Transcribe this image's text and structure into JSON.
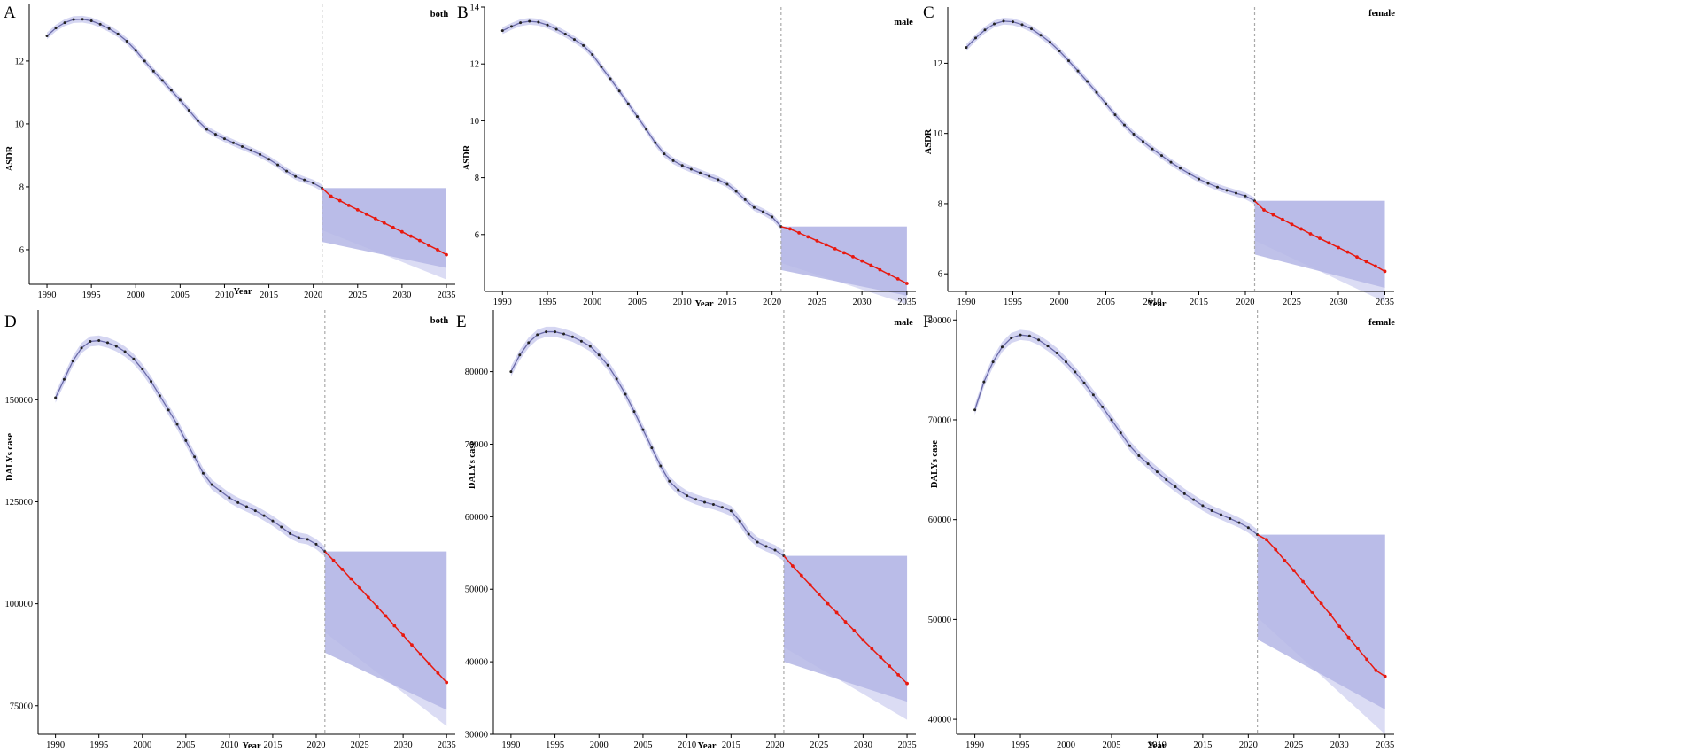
{
  "chart_data": [
    {
      "type": "line",
      "panel_letter": "A",
      "group_label": "both",
      "xlabel": "Year",
      "ylabel": "ASDR",
      "xlim": [
        1988,
        2036
      ],
      "ylim": [
        4.9,
        13.8
      ],
      "xticks": [
        1990,
        1995,
        2000,
        2005,
        2010,
        2015,
        2020,
        2025,
        2030,
        2035
      ],
      "yticks": [
        6,
        8,
        10,
        12
      ],
      "divider_x": 2021,
      "series": [
        {
          "role": "observed",
          "x": [
            1990,
            1991,
            1992,
            1993,
            1994,
            1995,
            1996,
            1997,
            1998,
            1999,
            2000,
            2001,
            2002,
            2003,
            2004,
            2005,
            2006,
            2007,
            2008,
            2009,
            2010,
            2011,
            2012,
            2013,
            2014,
            2015,
            2016,
            2017,
            2018,
            2019,
            2020,
            2021
          ],
          "y": [
            12.8,
            13.05,
            13.22,
            13.32,
            13.33,
            13.28,
            13.17,
            13.03,
            12.86,
            12.63,
            12.34,
            12.0,
            11.68,
            11.38,
            11.07,
            10.76,
            10.43,
            10.1,
            9.83,
            9.67,
            9.53,
            9.4,
            9.28,
            9.16,
            9.03,
            8.88,
            8.7,
            8.5,
            8.33,
            8.22,
            8.12,
            7.96
          ]
        },
        {
          "role": "forecast",
          "x": [
            2022,
            2023,
            2024,
            2025,
            2026,
            2027,
            2028,
            2029,
            2030,
            2031,
            2032,
            2033,
            2034,
            2035
          ],
          "y": [
            7.7,
            7.56,
            7.41,
            7.27,
            7.13,
            6.99,
            6.85,
            6.71,
            6.57,
            6.43,
            6.29,
            6.14,
            6.0,
            5.84
          ]
        }
      ],
      "bands": {
        "x": [
          2021,
          2035
        ],
        "outer": [
          [
            7.96,
            7.96
          ],
          [
            6.62,
            5.05
          ]
        ],
        "inner": [
          [
            7.96,
            7.96
          ],
          [
            6.25,
            5.42
          ]
        ]
      }
    },
    {
      "type": "line",
      "panel_letter": "B",
      "group_label": "male",
      "xlabel": "Year",
      "ylabel": "ASDR",
      "xlim": [
        1988,
        2036
      ],
      "ylim": [
        4.0,
        14.0
      ],
      "xticks": [
        1990,
        1995,
        2000,
        2005,
        2010,
        2015,
        2020,
        2025,
        2030,
        2035
      ],
      "yticks": [
        6,
        8,
        10,
        12,
        14
      ],
      "divider_x": 2021,
      "series": [
        {
          "role": "observed",
          "x": [
            1990,
            1991,
            1992,
            1993,
            1994,
            1995,
            1996,
            1997,
            1998,
            1999,
            2000,
            2001,
            2002,
            2003,
            2004,
            2005,
            2006,
            2007,
            2008,
            2009,
            2010,
            2011,
            2012,
            2013,
            2014,
            2015,
            2016,
            2017,
            2018,
            2019,
            2020,
            2021
          ],
          "y": [
            13.17,
            13.32,
            13.45,
            13.5,
            13.47,
            13.37,
            13.22,
            13.05,
            12.86,
            12.65,
            12.33,
            11.9,
            11.48,
            11.05,
            10.6,
            10.15,
            9.7,
            9.23,
            8.84,
            8.6,
            8.43,
            8.3,
            8.17,
            8.05,
            7.93,
            7.77,
            7.52,
            7.23,
            6.95,
            6.8,
            6.62,
            6.28
          ]
        },
        {
          "role": "forecast",
          "x": [
            2022,
            2023,
            2024,
            2025,
            2026,
            2027,
            2028,
            2029,
            2030,
            2031,
            2032,
            2033,
            2034,
            2035
          ],
          "y": [
            6.2,
            6.06,
            5.92,
            5.78,
            5.64,
            5.5,
            5.36,
            5.22,
            5.07,
            4.92,
            4.76,
            4.6,
            4.44,
            4.28
          ]
        }
      ],
      "bands": {
        "x": [
          2021,
          2035
        ],
        "outer": [
          [
            6.28,
            6.28
          ],
          [
            5.0,
            3.55
          ]
        ],
        "inner": [
          [
            6.28,
            6.28
          ],
          [
            4.75,
            3.85
          ]
        ]
      }
    },
    {
      "type": "line",
      "panel_letter": "C",
      "group_label": "female",
      "xlabel": "Year",
      "ylabel": "ASDR",
      "xlim": [
        1988,
        2036
      ],
      "ylim": [
        5.5,
        13.6
      ],
      "xticks": [
        1990,
        1995,
        2000,
        2005,
        2010,
        2015,
        2020,
        2025,
        2030,
        2035
      ],
      "yticks": [
        6,
        8,
        10,
        12
      ],
      "divider_x": 2021,
      "series": [
        {
          "role": "observed",
          "x": [
            1990,
            1991,
            1992,
            1993,
            1994,
            1995,
            1996,
            1997,
            1998,
            1999,
            2000,
            2001,
            2002,
            2003,
            2004,
            2005,
            2006,
            2007,
            2008,
            2009,
            2010,
            2011,
            2012,
            2013,
            2014,
            2015,
            2016,
            2017,
            2018,
            2019,
            2020,
            2021
          ],
          "y": [
            12.45,
            12.72,
            12.95,
            13.12,
            13.2,
            13.18,
            13.1,
            12.98,
            12.8,
            12.6,
            12.35,
            12.07,
            11.78,
            11.48,
            11.17,
            10.85,
            10.53,
            10.24,
            9.98,
            9.77,
            9.56,
            9.37,
            9.18,
            9.01,
            8.85,
            8.7,
            8.58,
            8.47,
            8.38,
            8.3,
            8.22,
            8.08
          ]
        },
        {
          "role": "forecast",
          "x": [
            2022,
            2023,
            2024,
            2025,
            2026,
            2027,
            2028,
            2029,
            2030,
            2031,
            2032,
            2033,
            2034,
            2035
          ],
          "y": [
            7.82,
            7.68,
            7.55,
            7.41,
            7.28,
            7.14,
            7.01,
            6.88,
            6.75,
            6.62,
            6.48,
            6.35,
            6.22,
            6.07
          ]
        }
      ],
      "bands": {
        "x": [
          2021,
          2035
        ],
        "outer": [
          [
            8.08,
            8.08
          ],
          [
            6.95,
            5.2
          ]
        ],
        "inner": [
          [
            8.08,
            8.08
          ],
          [
            6.55,
            5.6
          ]
        ]
      }
    },
    {
      "type": "line",
      "panel_letter": "D",
      "group_label": "both",
      "xlabel": "Year",
      "ylabel": "DALYs case",
      "xlim": [
        1988,
        2036
      ],
      "ylim": [
        68000,
        172000
      ],
      "xticks": [
        1990,
        1995,
        2000,
        2005,
        2010,
        2015,
        2020,
        2025,
        2030,
        2035
      ],
      "yticks": [
        75000,
        100000,
        125000,
        150000
      ],
      "divider_x": 2021,
      "series": [
        {
          "role": "observed",
          "x": [
            1990,
            1991,
            1992,
            1993,
            1994,
            1995,
            1996,
            1997,
            1998,
            1999,
            2000,
            2001,
            2002,
            2003,
            2004,
            2005,
            2006,
            2007,
            2008,
            2009,
            2010,
            2011,
            2012,
            2013,
            2014,
            2015,
            2016,
            2017,
            2018,
            2019,
            2020,
            2021
          ],
          "y": [
            150500,
            155000,
            159500,
            162700,
            164300,
            164500,
            164000,
            163100,
            161800,
            160000,
            157500,
            154500,
            151000,
            147500,
            144000,
            140000,
            136000,
            132000,
            129200,
            127600,
            126000,
            124800,
            123800,
            122800,
            121600,
            120300,
            118800,
            117200,
            116200,
            115800,
            114600,
            112800
          ]
        },
        {
          "role": "forecast",
          "x": [
            2022,
            2023,
            2024,
            2025,
            2026,
            2027,
            2028,
            2029,
            2030,
            2031,
            2032,
            2033,
            2034,
            2035
          ],
          "y": [
            110600,
            108400,
            106100,
            103900,
            101600,
            99300,
            97000,
            94600,
            92300,
            89900,
            87600,
            85300,
            83000,
            80700
          ]
        }
      ],
      "bands": {
        "x": [
          2021,
          2035
        ],
        "outer": [
          [
            112800,
            112800
          ],
          [
            93000,
            70000
          ]
        ],
        "inner": [
          [
            112800,
            112800
          ],
          [
            88000,
            74000
          ]
        ]
      }
    },
    {
      "type": "line",
      "panel_letter": "E",
      "group_label": "male",
      "xlabel": "Year",
      "ylabel": "DALYs case",
      "xlim": [
        1988,
        2036
      ],
      "ylim": [
        30000,
        88500
      ],
      "xticks": [
        1990,
        1995,
        2000,
        2005,
        2010,
        2015,
        2020,
        2025,
        2030,
        2035
      ],
      "yticks": [
        30000,
        40000,
        50000,
        60000,
        70000,
        80000
      ],
      "divider_x": 2021,
      "series": [
        {
          "role": "observed",
          "x": [
            1990,
            1991,
            1992,
            1993,
            1994,
            1995,
            1996,
            1997,
            1998,
            1999,
            2000,
            2001,
            2002,
            2003,
            2004,
            2005,
            2006,
            2007,
            2008,
            2009,
            2010,
            2011,
            2012,
            2013,
            2014,
            2015,
            2016,
            2017,
            2018,
            2019,
            2020,
            2021
          ],
          "y": [
            80000,
            82300,
            84000,
            85100,
            85500,
            85500,
            85200,
            84800,
            84200,
            83500,
            82300,
            80900,
            79000,
            76900,
            74500,
            72000,
            69500,
            67000,
            64900,
            63700,
            62900,
            62400,
            62000,
            61700,
            61300,
            60800,
            59400,
            57600,
            56500,
            55900,
            55400,
            54600
          ]
        },
        {
          "role": "forecast",
          "x": [
            2022,
            2023,
            2024,
            2025,
            2026,
            2027,
            2028,
            2029,
            2030,
            2031,
            2032,
            2033,
            2034,
            2035
          ],
          "y": [
            53200,
            51900,
            50600,
            49300,
            48000,
            46800,
            45500,
            44300,
            43000,
            41800,
            40600,
            39400,
            38200,
            37000
          ]
        }
      ],
      "bands": {
        "x": [
          2021,
          2035
        ],
        "outer": [
          [
            54600,
            54600
          ],
          [
            42000,
            32000
          ]
        ],
        "inner": [
          [
            54600,
            54600
          ],
          [
            40000,
            34500
          ]
        ]
      }
    },
    {
      "type": "line",
      "panel_letter": "F",
      "group_label": "female",
      "xlabel": "Year",
      "ylabel": "DALYs case",
      "xlim": [
        1988,
        2036
      ],
      "ylim": [
        38500,
        81000
      ],
      "xticks": [
        1990,
        1995,
        2000,
        2005,
        2010,
        2015,
        2020,
        2025,
        2030,
        2035
      ],
      "yticks": [
        40000,
        50000,
        60000,
        70000,
        80000
      ],
      "divider_x": 2021,
      "series": [
        {
          "role": "observed",
          "x": [
            1990,
            1991,
            1992,
            1993,
            1994,
            1995,
            1996,
            1997,
            1998,
            1999,
            2000,
            2001,
            2002,
            2003,
            2004,
            2005,
            2006,
            2007,
            2008,
            2009,
            2010,
            2011,
            2012,
            2013,
            2014,
            2015,
            2016,
            2017,
            2018,
            2019,
            2020,
            2021
          ],
          "y": [
            71000,
            73800,
            75800,
            77300,
            78200,
            78500,
            78400,
            78000,
            77400,
            76700,
            75800,
            74800,
            73700,
            72500,
            71300,
            70000,
            68700,
            67400,
            66400,
            65600,
            64800,
            64000,
            63300,
            62600,
            62000,
            61400,
            60900,
            60500,
            60100,
            59700,
            59200,
            58500
          ]
        },
        {
          "role": "forecast",
          "x": [
            2022,
            2023,
            2024,
            2025,
            2026,
            2027,
            2028,
            2029,
            2030,
            2031,
            2032,
            2033,
            2034,
            2035
          ],
          "y": [
            58000,
            57000,
            55900,
            54900,
            53800,
            52700,
            51600,
            50500,
            49300,
            48200,
            47100,
            46000,
            44900,
            44300
          ]
        }
      ],
      "bands": {
        "x": [
          2021,
          2035
        ],
        "outer": [
          [
            58500,
            58500
          ],
          [
            50200,
            38500
          ]
        ],
        "inner": [
          [
            58500,
            58500
          ],
          [
            48000,
            41000
          ]
        ]
      }
    }
  ],
  "colors": {
    "observed_line": "#6a6aa8",
    "observed_point": "#222222",
    "forecast_line": "#e8190f",
    "band_outer": "#d5d6f2",
    "band_inner": "#b4b6e5",
    "divider": "#aaaaaa",
    "axis": "#000000"
  }
}
